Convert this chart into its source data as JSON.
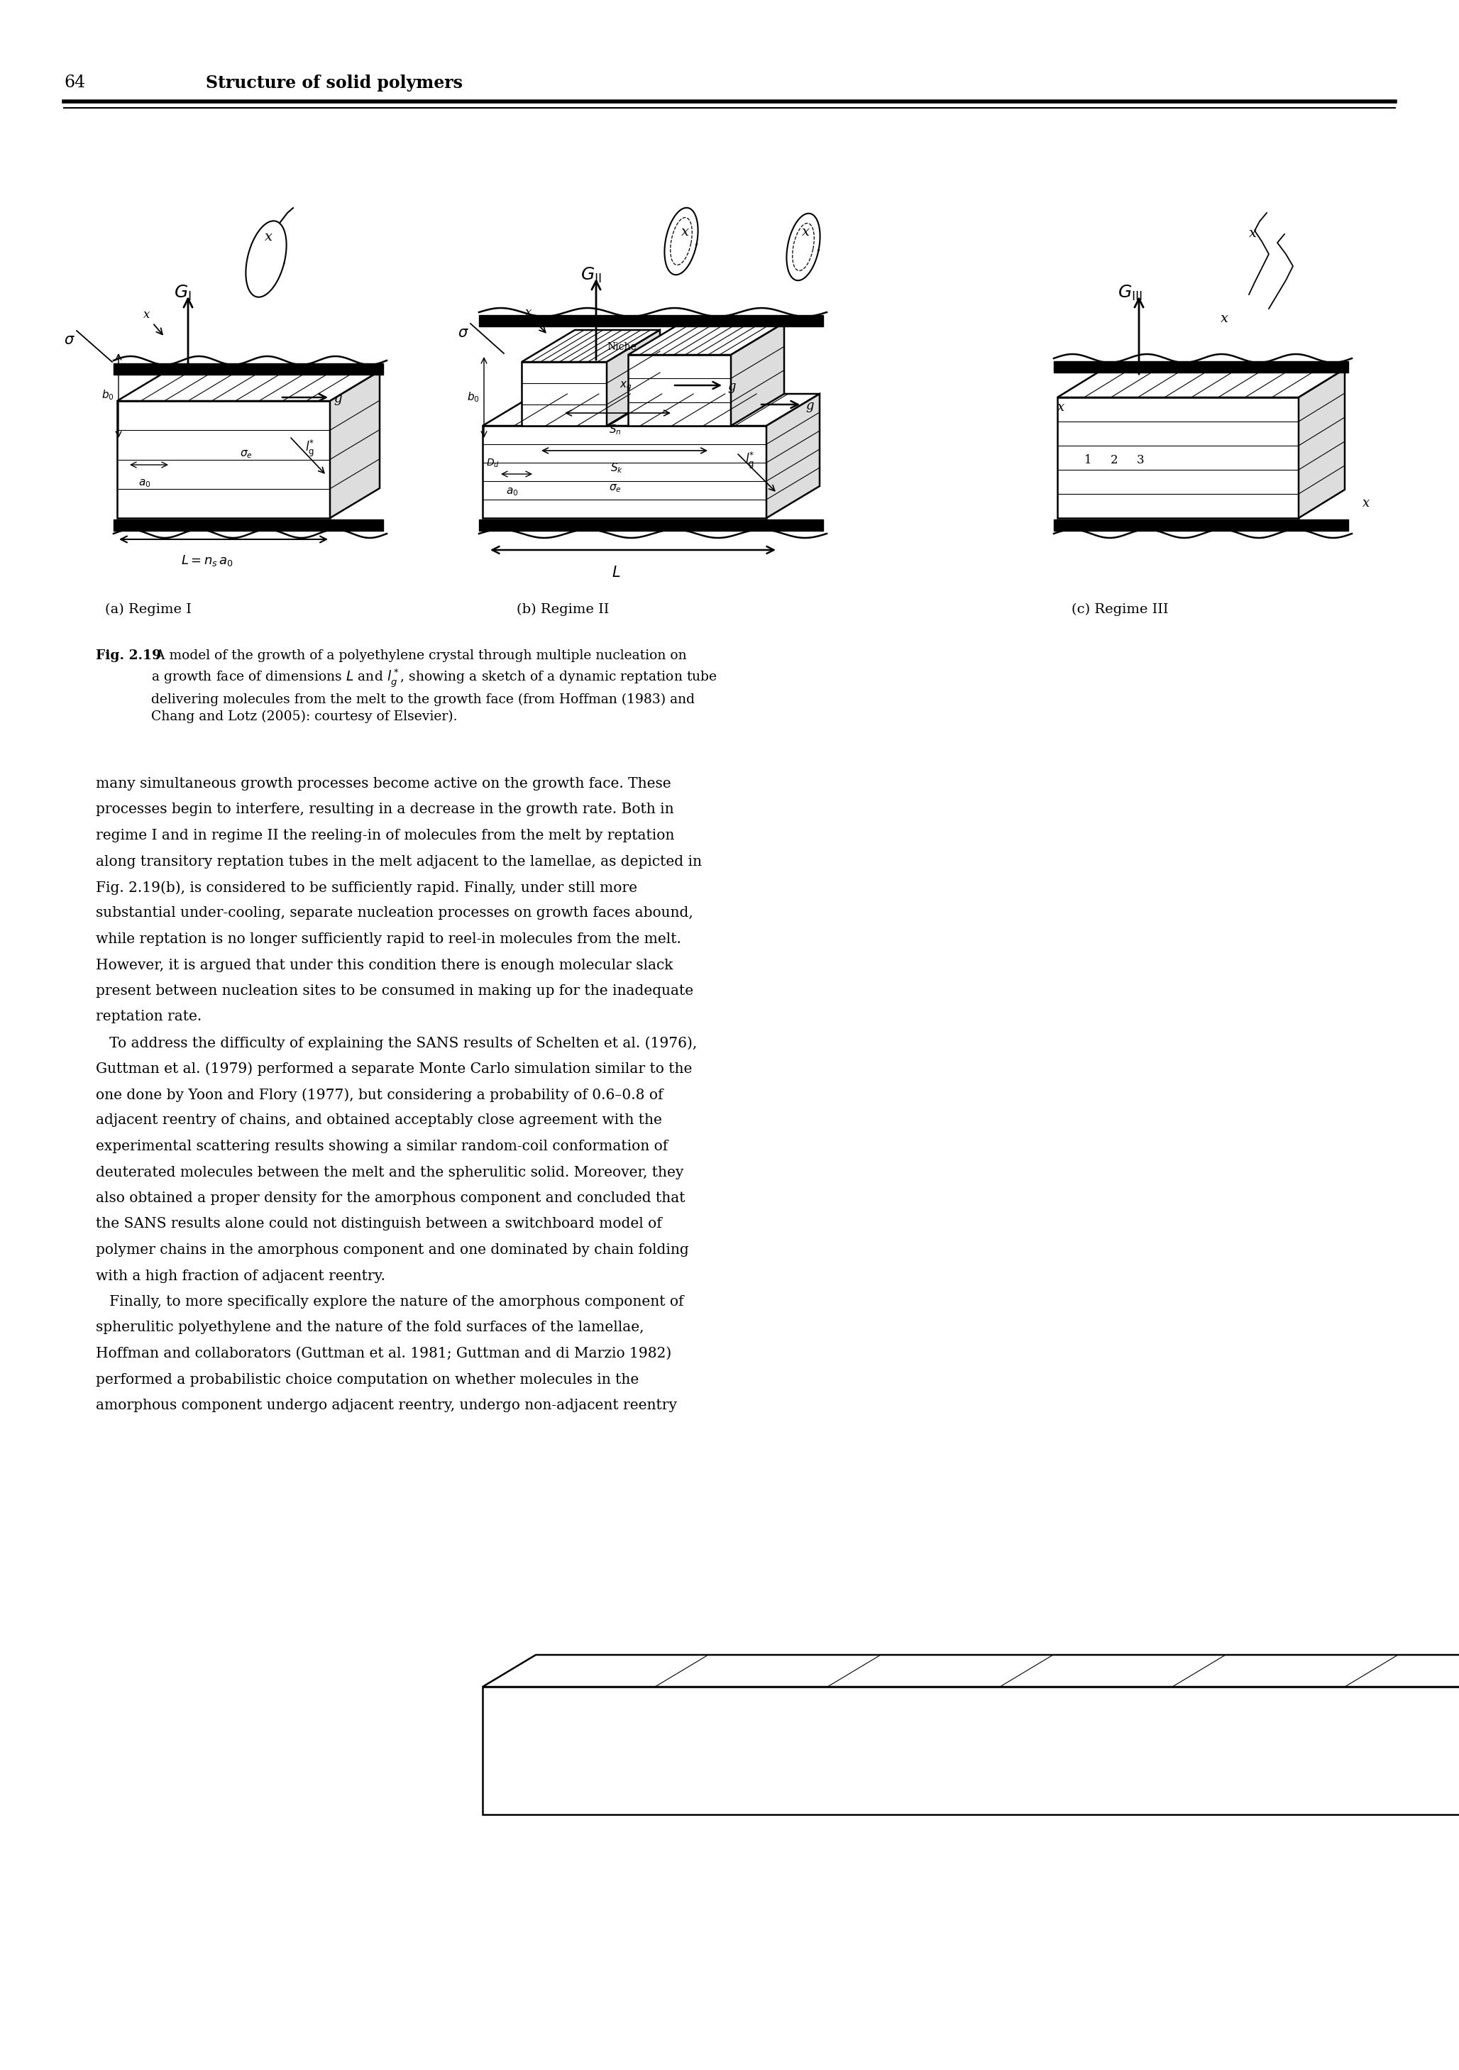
{
  "page_number": "64",
  "header_title": "Structure of solid polymers",
  "bg_color": "#ffffff",
  "text_color": "#000000",
  "figure_caption_bold": "Fig. 2.19",
  "figure_caption_rest": " A model of the growth of a polyethylene crystal through multiple nucleation on a growth face of dimensions L and l*g, showing a sketch of a dynamic reptation tube delivering molecules from the melt to the growth face (from Hoffman (1983) and Chang and Lotz (2005): courtesy of Elsevier).",
  "regime_labels": [
    "(a) Regime I",
    "(b) Regime II",
    "(c) Regime III"
  ],
  "body_lines": [
    "many simultaneous growth processes become active on the growth face. These",
    "processes begin to interfere, resulting in a decrease in the growth rate. Both in",
    "regime I and in regime II the reeling-in of molecules from the melt by reptation",
    "along transitory reptation tubes in the melt adjacent to the lamellae, as depicted in",
    "Fig. 2.19(b), is considered to be sufficiently rapid. Finally, under still more",
    "substantial under-cooling, separate nucleation processes on growth faces abound,",
    "while reptation is no longer sufficiently rapid to reel-in molecules from the melt.",
    "However, it is argued that under this condition there is enough molecular slack",
    "present between nucleation sites to be consumed in making up for the inadequate",
    "reptation rate.",
    "   To address the difficulty of explaining the SANS results of Schelten et al. (1976),",
    "Guttman et al. (1979) performed a separate Monte Carlo simulation similar to the",
    "one done by Yoon and Flory (1977), but considering a probability of 0.6–0.8 of",
    "adjacent reentry of chains, and obtained acceptably close agreement with the",
    "experimental scattering results showing a similar random-coil conformation of",
    "deuterated molecules between the melt and the spherulitic solid. Moreover, they",
    "also obtained a proper density for the amorphous component and concluded that",
    "the SANS results alone could not distinguish between a switchboard model of",
    "polymer chains in the amorphous component and one dominated by chain folding",
    "with a high fraction of adjacent reentry.",
    "   Finally, to more specifically explore the nature of the amorphous component of",
    "spherulitic polyethylene and the nature of the fold surfaces of the lamellae,",
    "Hoffman and collaborators (Guttman et al. 1981; Guttman and di Marzio 1982)",
    "performed a probabilistic choice computation on whether molecules in the",
    "amorphous component undergo adjacent reentry, undergo non-adjacent reentry"
  ]
}
